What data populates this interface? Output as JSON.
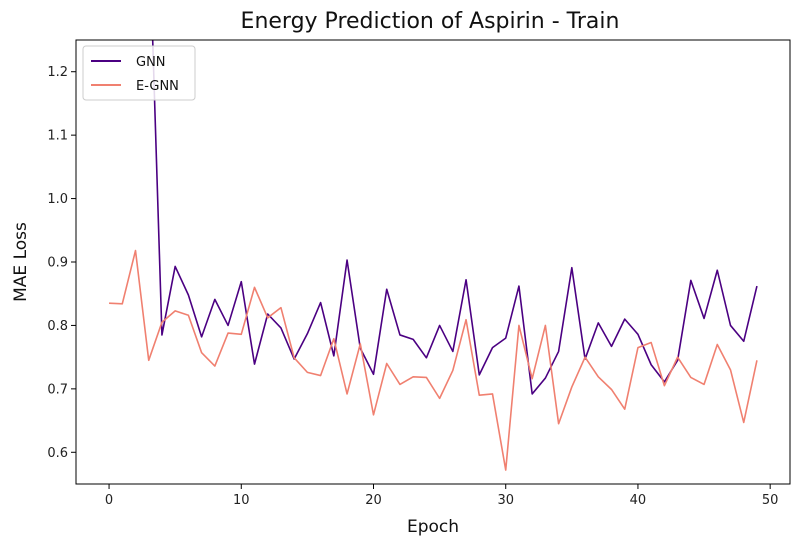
{
  "chart_data": {
    "type": "line",
    "title": "Energy Prediction of Aspirin - Train",
    "xlabel": "Epoch",
    "ylabel": "MAE Loss",
    "xlim": [
      -2.5,
      51.5
    ],
    "ylim": [
      0.55,
      1.25
    ],
    "xticks": [
      0,
      10,
      20,
      30,
      40,
      50
    ],
    "yticks": [
      0.6,
      0.7,
      0.8,
      0.9,
      1.0,
      1.1,
      1.2
    ],
    "ytick_labels": [
      "0.6",
      "0.7",
      "0.8",
      "0.9",
      "1.0",
      "1.1",
      "1.2"
    ],
    "grid": false,
    "legend_position": "top-left",
    "x": [
      0,
      1,
      2,
      3,
      4,
      5,
      6,
      7,
      8,
      9,
      10,
      11,
      12,
      13,
      14,
      15,
      16,
      17,
      18,
      19,
      20,
      21,
      22,
      23,
      24,
      25,
      26,
      27,
      28,
      29,
      30,
      31,
      32,
      33,
      34,
      35,
      36,
      37,
      38,
      39,
      40,
      41,
      42,
      43,
      44,
      45,
      46,
      47,
      48,
      49
    ],
    "series": [
      {
        "name": "GNN",
        "color": "#4b0082",
        "x": [
          3.3,
          4,
          5,
          6,
          7,
          8,
          9,
          10,
          11,
          12,
          13,
          14,
          15,
          16,
          17,
          18,
          19,
          20,
          21,
          22,
          23,
          24,
          25,
          26,
          27,
          28,
          29,
          30,
          31,
          32,
          33,
          34,
          35,
          36,
          37,
          38,
          39,
          40,
          41,
          42,
          43,
          44,
          45,
          46,
          47,
          48,
          49
        ],
        "values": [
          1.25,
          0.785,
          0.893,
          0.848,
          0.782,
          0.841,
          0.8,
          0.869,
          0.739,
          0.818,
          0.796,
          0.747,
          0.787,
          0.836,
          0.752,
          0.903,
          0.764,
          0.723,
          0.857,
          0.785,
          0.778,
          0.749,
          0.8,
          0.759,
          0.872,
          0.722,
          0.765,
          0.78,
          0.862,
          0.692,
          0.717,
          0.759,
          0.891,
          0.747,
          0.804,
          0.767,
          0.81,
          0.786,
          0.738,
          0.711,
          0.745,
          0.871,
          0.811,
          0.887,
          0.8,
          0.775,
          0.862
        ]
      },
      {
        "name": "E-GNN",
        "color": "#f08070",
        "x": [
          0,
          1,
          2,
          3,
          4,
          5,
          6,
          7,
          8,
          9,
          10,
          11,
          12,
          13,
          14,
          15,
          16,
          17,
          18,
          19,
          20,
          21,
          22,
          23,
          24,
          25,
          26,
          27,
          28,
          29,
          30,
          31,
          32,
          33,
          34,
          35,
          36,
          37,
          38,
          39,
          40,
          41,
          42,
          43,
          44,
          45,
          46,
          47,
          48,
          49
        ],
        "values": [
          0.835,
          0.834,
          0.918,
          0.745,
          0.805,
          0.823,
          0.816,
          0.757,
          0.736,
          0.788,
          0.786,
          0.86,
          0.812,
          0.828,
          0.749,
          0.726,
          0.721,
          0.779,
          0.692,
          0.771,
          0.659,
          0.74,
          0.707,
          0.719,
          0.718,
          0.685,
          0.729,
          0.809,
          0.69,
          0.692,
          0.572,
          0.8,
          0.716,
          0.8,
          0.645,
          0.703,
          0.75,
          0.719,
          0.699,
          0.668,
          0.765,
          0.773,
          0.705,
          0.75,
          0.718,
          0.707,
          0.77,
          0.73,
          0.647,
          0.745
        ]
      }
    ]
  }
}
